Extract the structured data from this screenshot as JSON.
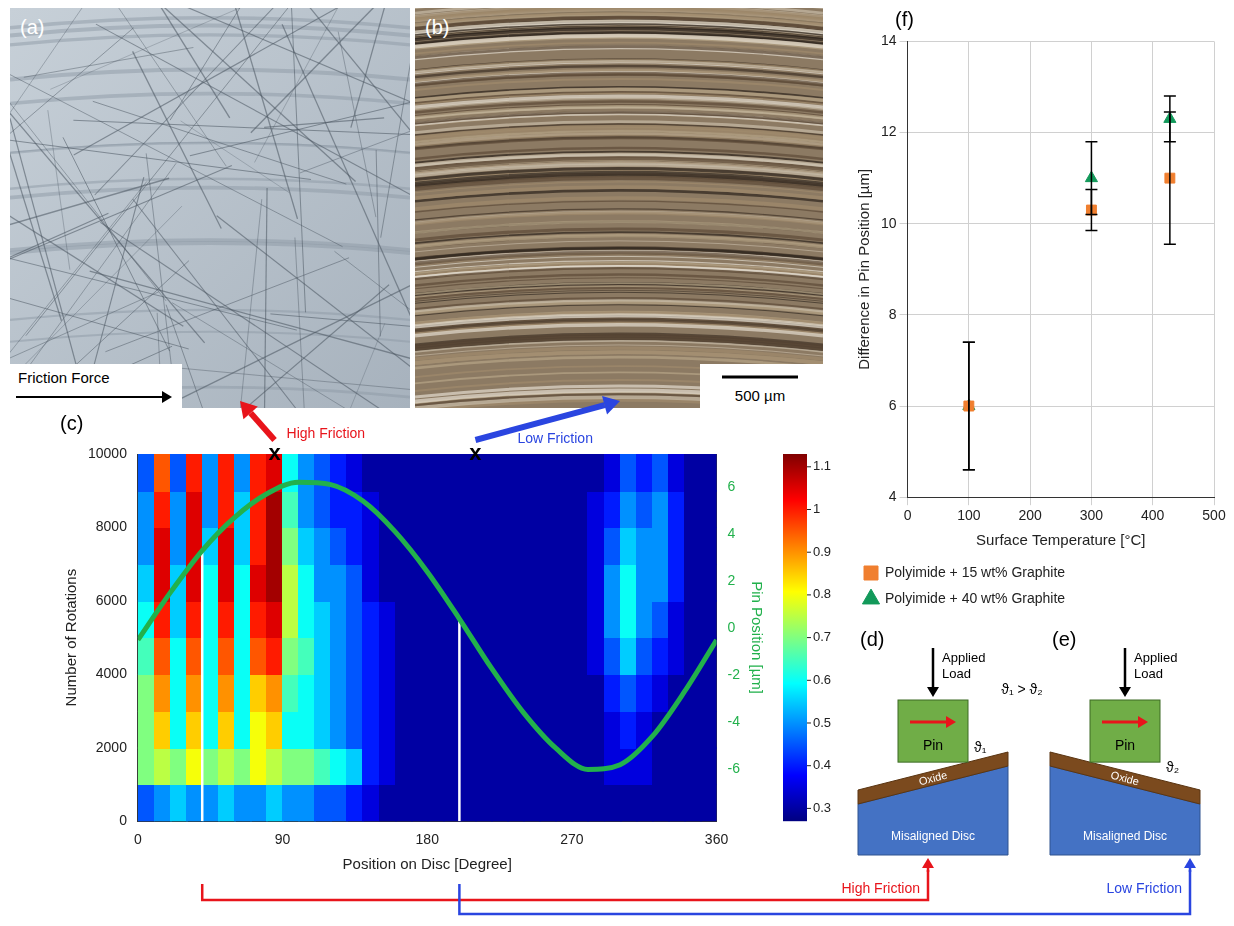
{
  "chart_data": [
    {
      "type": "heatmap",
      "panel": "(c)",
      "x_label": "Position on Disc [Degree]",
      "y_label": "Number of Rotations",
      "y2_label": "Pin Position [µm]",
      "xlim": [
        0,
        360
      ],
      "xticks": [
        0,
        90,
        180,
        270,
        360
      ],
      "ylim": [
        0,
        10000
      ],
      "yticks": [
        0,
        2000,
        4000,
        6000,
        8000,
        10000
      ],
      "y2lim": [
        -8.2,
        7.4
      ],
      "y2ticks": [
        -6,
        -4,
        -2,
        0,
        2,
        4,
        6
      ],
      "grid": false,
      "x_bins": [
        0,
        10,
        20,
        30,
        40,
        50,
        60,
        70,
        80,
        90,
        100,
        110,
        120,
        130,
        140,
        150,
        160,
        170,
        180,
        190,
        200,
        210,
        220,
        230,
        240,
        250,
        260,
        270,
        280,
        290,
        300,
        310,
        320,
        330,
        340,
        350,
        360
      ],
      "y_bins": [
        0,
        1000,
        2000,
        3000,
        4000,
        5000,
        6000,
        7000,
        8000,
        9000,
        10000
      ],
      "cells": [
        [
          0.45,
          0.5,
          0.55,
          0.5,
          0.5,
          0.55,
          0.5,
          0.5,
          0.55,
          0.5,
          0.5,
          0.45,
          0.45,
          0.4,
          0.35,
          0.3,
          0.3,
          0.3,
          0.3,
          0.3,
          0.3,
          0.3,
          0.3,
          0.3,
          0.3,
          0.3,
          0.3,
          0.3,
          0.3,
          0.3,
          0.3,
          0.3,
          0.3,
          0.3,
          0.3,
          0.3
        ],
        [
          0.7,
          0.75,
          0.7,
          0.8,
          0.7,
          0.75,
          0.7,
          0.8,
          0.75,
          0.7,
          0.7,
          0.65,
          0.6,
          0.55,
          0.4,
          0.35,
          0.3,
          0.3,
          0.3,
          0.3,
          0.3,
          0.3,
          0.3,
          0.3,
          0.3,
          0.3,
          0.3,
          0.3,
          0.3,
          0.35,
          0.35,
          0.35,
          0.3,
          0.3,
          0.3,
          0.3
        ],
        [
          0.7,
          0.85,
          0.6,
          0.85,
          0.6,
          0.85,
          0.6,
          0.8,
          0.85,
          0.6,
          0.6,
          0.55,
          0.5,
          0.45,
          0.4,
          0.35,
          0.3,
          0.3,
          0.3,
          0.3,
          0.3,
          0.3,
          0.3,
          0.3,
          0.3,
          0.3,
          0.3,
          0.3,
          0.3,
          0.35,
          0.4,
          0.35,
          0.3,
          0.3,
          0.3,
          0.3
        ],
        [
          0.7,
          0.9,
          0.6,
          0.9,
          0.6,
          0.9,
          0.6,
          0.85,
          0.9,
          0.65,
          0.6,
          0.55,
          0.5,
          0.45,
          0.4,
          0.35,
          0.3,
          0.3,
          0.3,
          0.3,
          0.3,
          0.3,
          0.3,
          0.3,
          0.3,
          0.3,
          0.3,
          0.3,
          0.3,
          0.4,
          0.45,
          0.4,
          0.35,
          0.3,
          0.3,
          0.3
        ],
        [
          0.65,
          0.95,
          0.6,
          0.95,
          0.6,
          0.95,
          0.6,
          0.95,
          1.0,
          0.7,
          0.65,
          0.55,
          0.5,
          0.45,
          0.4,
          0.35,
          0.3,
          0.3,
          0.3,
          0.3,
          0.3,
          0.3,
          0.3,
          0.3,
          0.3,
          0.3,
          0.3,
          0.3,
          0.35,
          0.45,
          0.55,
          0.45,
          0.4,
          0.35,
          0.3,
          0.3
        ],
        [
          0.6,
          1.0,
          0.55,
          1.0,
          0.6,
          1.0,
          0.6,
          1.0,
          1.05,
          0.75,
          0.6,
          0.55,
          0.5,
          0.45,
          0.4,
          0.35,
          0.3,
          0.3,
          0.3,
          0.3,
          0.3,
          0.3,
          0.3,
          0.3,
          0.3,
          0.3,
          0.3,
          0.3,
          0.35,
          0.5,
          0.6,
          0.5,
          0.45,
          0.35,
          0.3,
          0.3
        ],
        [
          0.55,
          1.05,
          0.55,
          1.05,
          0.6,
          1.05,
          0.6,
          1.05,
          1.1,
          0.75,
          0.6,
          0.5,
          0.5,
          0.45,
          0.35,
          0.3,
          0.3,
          0.3,
          0.3,
          0.3,
          0.3,
          0.3,
          0.3,
          0.3,
          0.3,
          0.3,
          0.3,
          0.3,
          0.35,
          0.5,
          0.6,
          0.5,
          0.5,
          0.4,
          0.3,
          0.3
        ],
        [
          0.5,
          1.05,
          0.5,
          1.05,
          0.55,
          1.05,
          0.55,
          1.0,
          1.1,
          0.7,
          0.55,
          0.5,
          0.45,
          0.4,
          0.35,
          0.3,
          0.3,
          0.3,
          0.3,
          0.3,
          0.3,
          0.3,
          0.3,
          0.3,
          0.3,
          0.3,
          0.3,
          0.3,
          0.35,
          0.45,
          0.55,
          0.5,
          0.5,
          0.4,
          0.3,
          0.3
        ],
        [
          0.5,
          1.0,
          0.5,
          1.05,
          0.5,
          1.0,
          0.55,
          1.0,
          1.1,
          0.65,
          0.5,
          0.45,
          0.4,
          0.4,
          0.35,
          0.3,
          0.3,
          0.3,
          0.3,
          0.3,
          0.3,
          0.3,
          0.3,
          0.3,
          0.3,
          0.3,
          0.3,
          0.3,
          0.35,
          0.4,
          0.5,
          0.45,
          0.5,
          0.4,
          0.3,
          0.3
        ],
        [
          0.45,
          0.95,
          0.45,
          1.0,
          0.5,
          1.0,
          0.5,
          1.0,
          1.05,
          0.6,
          0.5,
          0.45,
          0.4,
          0.35,
          0.3,
          0.3,
          0.3,
          0.3,
          0.3,
          0.3,
          0.3,
          0.3,
          0.3,
          0.3,
          0.3,
          0.3,
          0.3,
          0.3,
          0.3,
          0.35,
          0.45,
          0.4,
          0.45,
          0.35,
          0.3,
          0.3
        ]
      ],
      "color_range": [
        0.27,
        1.13
      ],
      "color_ticks": [
        0.3,
        0.4,
        0.5,
        0.6,
        0.7,
        0.8,
        0.9,
        1,
        1.1
      ],
      "series": [
        {
          "type": "line",
          "axis": "y2",
          "color": "#22b14c",
          "marker": "none",
          "line_style": "solid",
          "x": [
            0,
            20,
            40,
            60,
            80,
            100,
            120,
            140,
            160,
            180,
            200,
            220,
            240,
            260,
            280,
            300,
            320,
            340,
            360
          ],
          "values": [
            -0.5,
            1.5,
            3.3,
            4.7,
            5.7,
            6.2,
            6.1,
            5.4,
            4.1,
            2.4,
            0.4,
            -1.7,
            -3.6,
            -5.1,
            -6.0,
            -5.8,
            -4.6,
            -2.7,
            -0.5
          ]
        }
      ],
      "annotations": [
        {
          "text": "x",
          "x": 85,
          "y": 10000,
          "arrow_label": "High Friction",
          "color": "#e8141b"
        },
        {
          "text": "x",
          "x": 210,
          "y": 10000,
          "arrow_label": "Low Friction",
          "color": "#2a45e0"
        }
      ],
      "marker_lines": [
        {
          "x": 40,
          "y2": 3.3,
          "color": "#ffffff"
        },
        {
          "x": 200,
          "y2": 0.4,
          "color": "#ffffff"
        }
      ]
    },
    {
      "type": "scatter",
      "panel": "(f)",
      "x_label": "Surface Temperature [°C]",
      "y_label": "Difference in Pin Position [µm]",
      "xlim": [
        0,
        500
      ],
      "xticks": [
        0,
        100,
        200,
        300,
        400,
        500
      ],
      "ylim": [
        4,
        14
      ],
      "yticks": [
        4,
        6,
        8,
        10,
        12,
        14
      ],
      "grid": true,
      "legend": "bottom",
      "series": [
        {
          "name": "Polyimide + 15 wt% Graphite",
          "color": "#f07f2f",
          "marker": "square",
          "x": [
            100,
            300,
            428
          ],
          "values": [
            6.0,
            10.3,
            11.0
          ],
          "errors": [
            1.4,
            0.45,
            1.45
          ]
        },
        {
          "name": "Polyimide + 40 wt% Graphite",
          "color": "#12995a",
          "marker": "triangle",
          "x": [
            100,
            300,
            428
          ],
          "values": [
            6.0,
            11.0,
            12.3
          ],
          "errors": [
            1.4,
            0.8,
            0.5
          ]
        }
      ]
    }
  ],
  "photos": [
    {
      "panel": "(a)",
      "label": "Friction Force"
    },
    {
      "panel": "(b)",
      "scale_bar": "500 µm"
    }
  ],
  "diagrams": {
    "relation": "ϑ₁ > ϑ₂",
    "items": [
      {
        "panel": "(d)",
        "load": "Applied Load",
        "pin": "Pin",
        "oxide": "Oxide",
        "disc": "Misaligned Disc",
        "angle": "ϑ₁",
        "result": "High Friction",
        "color": "#e8141b"
      },
      {
        "panel": "(e)",
        "load": "Applied Load",
        "pin": "Pin",
        "oxide": "Oxide",
        "disc": "Misaligned Disc",
        "angle": "ϑ₂",
        "result": "Low Friction",
        "color": "#2a45e0"
      }
    ]
  }
}
